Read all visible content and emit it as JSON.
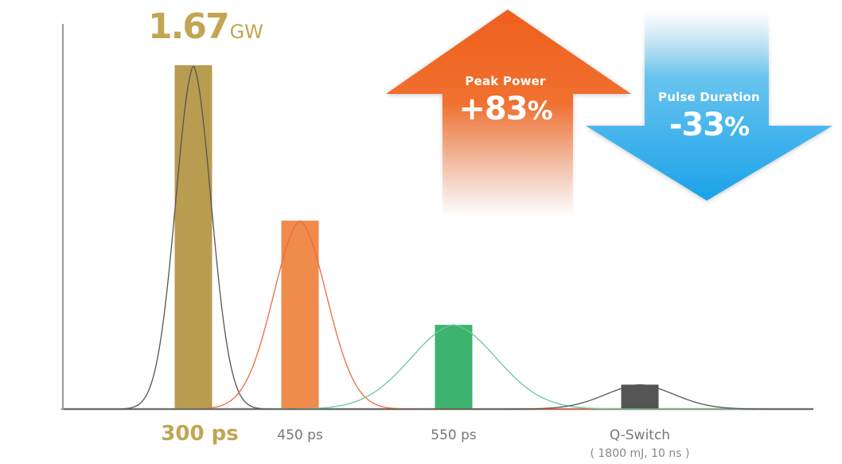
{
  "chart_data": {
    "type": "bar",
    "categories": [
      "300 ps",
      "450 ps",
      "550 ps",
      "Q-Switch"
    ],
    "category_note": "( 1800 mJ, 10 ns )",
    "relative_values": [
      100,
      54.8,
      24.5,
      7.1
    ],
    "colors": [
      "#b89c4f",
      "#ef8b4b",
      "#3db36f",
      "#555555"
    ],
    "label_colors": [
      "#c2a552",
      "#777777",
      "#777777",
      "#777777"
    ],
    "pulse_width_rel": [
      0.6,
      0.9,
      1.45,
      1.15
    ],
    "curve_colors": [
      "#555555",
      "#ee6a3c",
      "#66c99a",
      "#555555"
    ],
    "peak": {
      "value": "1.67",
      "unit": "GW"
    },
    "grid": false,
    "xlabel": "",
    "ylabel": ""
  },
  "callouts": {
    "peak_power": {
      "title": "Peak Power",
      "sign": "+",
      "value": "83",
      "unit": "%",
      "color": "#ee6a22"
    },
    "pulse_duration": {
      "title": "Pulse Duration",
      "sign": "-",
      "value": "33",
      "unit": "%",
      "color": "#1fa3e6"
    }
  }
}
